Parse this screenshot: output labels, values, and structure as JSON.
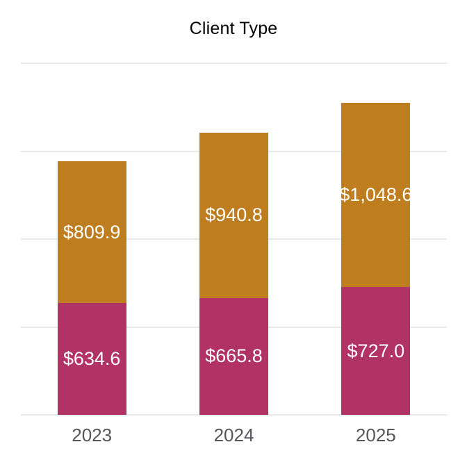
{
  "chart_data": {
    "type": "bar",
    "stacked": true,
    "title": "Client Type",
    "categories": [
      "2023",
      "2024",
      "2025"
    ],
    "series": [
      {
        "name": "bottom-segment",
        "color": "#B13365",
        "values": [
          634.6,
          665.8,
          727.0
        ],
        "data_labels": [
          "$634.6",
          "$665.8",
          "$727.0"
        ]
      },
      {
        "name": "top-segment",
        "color": "#BE7E20",
        "values": [
          809.9,
          940.8,
          1048.6
        ],
        "data_labels": [
          "$809.9",
          "$940.8",
          "$1,048.6"
        ]
      }
    ],
    "totals": [
      1444.5,
      1606.6,
      1775.6
    ],
    "xlabel": "",
    "ylabel": "",
    "ylim": [
      0,
      2000
    ],
    "gridline_values": [
      0,
      500,
      1000,
      1500,
      2000
    ],
    "grid": true,
    "legend": false,
    "y_tick_labels_shown": false,
    "styles": {
      "background": "#FFFFFF",
      "title_color": "#000000",
      "gridline_color": "#E9E9E9",
      "data_label_color": "#FFFFFF",
      "axis_label_color": "#55565A"
    }
  }
}
